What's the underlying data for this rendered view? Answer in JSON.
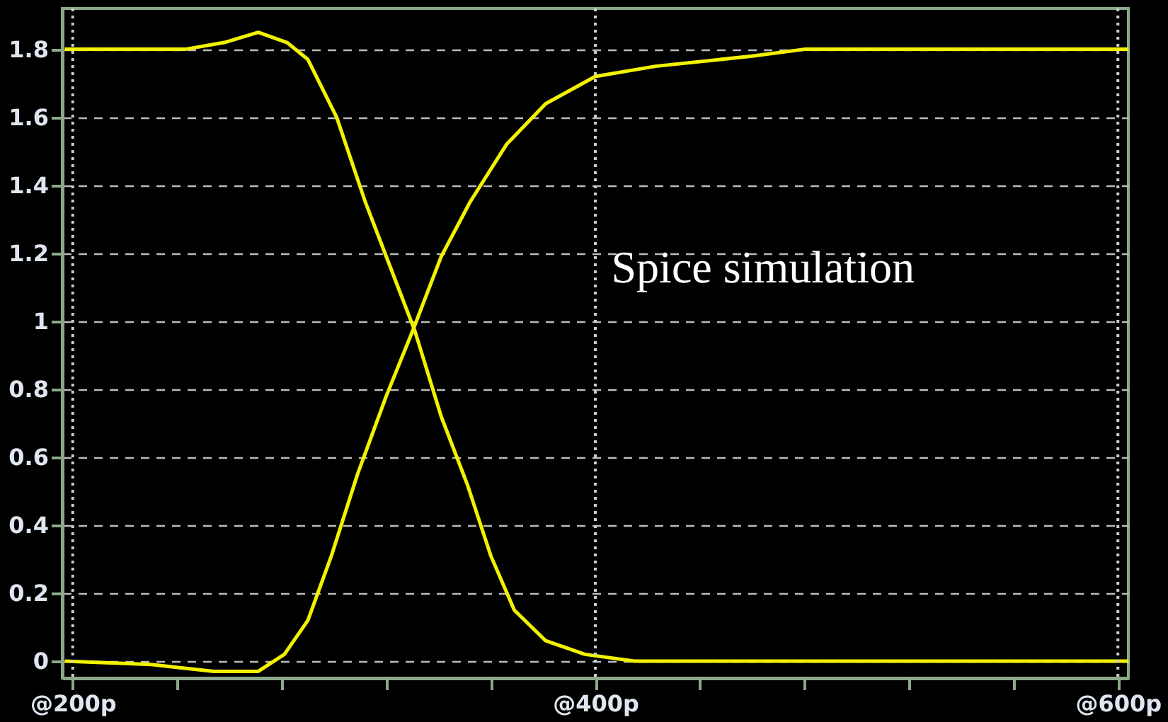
{
  "chart_data": {
    "type": "line",
    "annotations": [
      "Spice simulation"
    ],
    "xlim": [
      196,
      604
    ],
    "ylim": [
      -0.05,
      1.92
    ],
    "xticks": [
      {
        "value": 200,
        "label": "@200p"
      },
      {
        "value": 240,
        "label": null
      },
      {
        "value": 280,
        "label": null
      },
      {
        "value": 320,
        "label": null
      },
      {
        "value": 360,
        "label": null
      },
      {
        "value": 400,
        "label": "@400p"
      },
      {
        "value": 440,
        "label": null
      },
      {
        "value": 480,
        "label": null
      },
      {
        "value": 520,
        "label": null
      },
      {
        "value": 560,
        "label": null
      },
      {
        "value": 600,
        "label": "@600p"
      }
    ],
    "yticks": [
      0,
      0.2,
      0.4,
      0.6,
      0.8,
      1,
      1.2,
      1.4,
      1.6,
      1.8
    ],
    "grid": true,
    "legend": false,
    "marker": "none",
    "line_style": "solid",
    "series": [
      {
        "color": "#f2f200",
        "x": [
          197,
          243,
          258,
          271,
          282,
          290,
          301,
          312,
          322,
          331,
          341,
          351,
          360,
          369,
          381,
          396,
          415,
          604
        ],
        "values": [
          1.8,
          1.8,
          1.82,
          1.85,
          1.82,
          1.77,
          1.6,
          1.35,
          1.15,
          0.97,
          0.72,
          0.52,
          0.31,
          0.15,
          0.06,
          0.02,
          0.0,
          0.0
        ]
      },
      {
        "color": "#f2f200",
        "x": [
          197,
          230,
          254,
          271,
          281,
          290,
          299,
          309,
          320,
          330,
          341,
          352,
          366,
          381,
          400,
          423,
          460,
          480,
          604
        ],
        "values": [
          0.0,
          -0.01,
          -0.03,
          -0.03,
          0.02,
          0.12,
          0.31,
          0.55,
          0.78,
          0.97,
          1.19,
          1.35,
          1.52,
          1.64,
          1.72,
          1.75,
          1.78,
          1.8,
          1.8
        ]
      }
    ]
  }
}
